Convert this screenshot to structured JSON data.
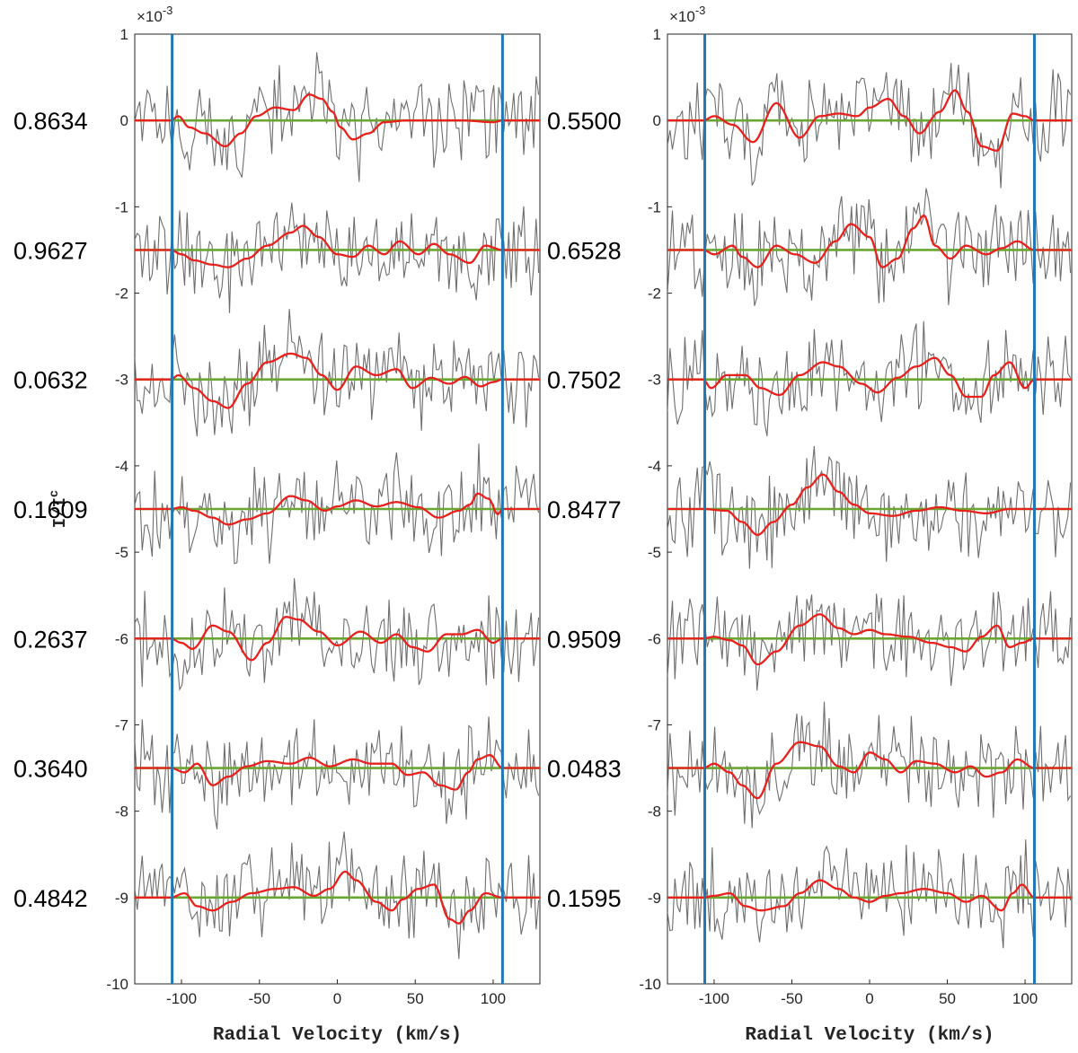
{
  "chart_data": [
    {
      "type": "line",
      "xlabel": "Radial Velocity (km/s)",
      "ylabel": "I/I_c",
      "ylabel_text": "I/I",
      "ylabel_sub": "c",
      "exponent_label": "×10",
      "exponent_power": "-3",
      "xlim": [
        -130,
        130
      ],
      "ylim": [
        -10,
        1
      ],
      "xticks": [
        -100,
        -50,
        0,
        50,
        100
      ],
      "yticks": [
        1,
        0,
        -1,
        -2,
        -3,
        -4,
        -5,
        -6,
        -7,
        -8,
        -9,
        -10
      ],
      "vertical_lines_kms": [
        -106,
        106
      ],
      "offset_step": -1.5,
      "phases": [
        "0.8634",
        "0.9627",
        "0.0632",
        "0.1609",
        "0.2637",
        "0.3640",
        "0.4842"
      ],
      "series": [
        {
          "phase": "0.8634",
          "offset": 0.0,
          "model_x": [
            -130,
            -107,
            -102,
            -95,
            -85,
            -72,
            -62,
            -52,
            -40,
            -28,
            -18,
            -10,
            -3,
            2,
            10,
            20,
            30,
            45,
            60,
            80,
            100,
            106,
            130
          ],
          "model_y": [
            0,
            0,
            0.05,
            -0.08,
            -0.15,
            -0.3,
            -0.15,
            0.05,
            0.15,
            0.12,
            0.3,
            0.25,
            0.1,
            -0.08,
            -0.22,
            -0.15,
            -0.02,
            0,
            0,
            0,
            -0.02,
            0,
            0
          ]
        },
        {
          "phase": "0.9627",
          "offset": -1.5,
          "model_x": [
            -130,
            -107,
            -100,
            -92,
            -80,
            -70,
            -58,
            -45,
            -30,
            -22,
            -12,
            0,
            10,
            20,
            30,
            40,
            52,
            62,
            72,
            85,
            95,
            106,
            130
          ],
          "model_y": [
            0,
            0,
            -0.05,
            -0.12,
            -0.17,
            -0.2,
            -0.1,
            0.05,
            0.2,
            0.28,
            0.15,
            -0.05,
            -0.08,
            0.05,
            -0.05,
            0.1,
            -0.05,
            0.07,
            -0.05,
            -0.15,
            0.05,
            0,
            0
          ]
        },
        {
          "phase": "0.0632",
          "offset": -3.0,
          "model_x": [
            -130,
            -107,
            -102,
            -92,
            -80,
            -70,
            -58,
            -45,
            -30,
            -20,
            -10,
            0,
            12,
            25,
            38,
            48,
            60,
            72,
            82,
            92,
            100,
            106,
            130
          ],
          "model_y": [
            0,
            0,
            0.05,
            -0.1,
            -0.25,
            -0.33,
            -0.05,
            0.2,
            0.3,
            0.25,
            0.05,
            -0.12,
            0.15,
            0.05,
            0.12,
            -0.1,
            0.02,
            -0.05,
            0.03,
            -0.08,
            -0.03,
            0,
            0
          ]
        },
        {
          "phase": "0.1609",
          "offset": -4.5,
          "model_x": [
            -130,
            -107,
            -100,
            -92,
            -80,
            -70,
            -58,
            -45,
            -30,
            -20,
            -8,
            0,
            12,
            25,
            38,
            52,
            65,
            78,
            85,
            90,
            97,
            103,
            106,
            130
          ],
          "model_y": [
            0,
            0,
            0.02,
            -0.02,
            -0.1,
            -0.18,
            -0.12,
            -0.05,
            0.15,
            0.1,
            -0.02,
            0.03,
            0.1,
            0.03,
            0.08,
            0.02,
            -0.1,
            -0.02,
            0.05,
            0.18,
            0.12,
            -0.06,
            0,
            0
          ]
        },
        {
          "phase": "0.2637",
          "offset": -6.0,
          "model_x": [
            -130,
            -107,
            -100,
            -93,
            -80,
            -70,
            -55,
            -45,
            -33,
            -25,
            -12,
            0,
            15,
            28,
            38,
            48,
            58,
            70,
            80,
            90,
            100,
            106,
            130
          ],
          "model_y": [
            0,
            0,
            -0.05,
            -0.12,
            0.15,
            0.08,
            -0.25,
            -0.05,
            0.25,
            0.22,
            0.08,
            -0.08,
            0.08,
            -0.05,
            0.05,
            -0.1,
            -0.15,
            0.05,
            0.05,
            0.1,
            -0.05,
            0,
            0
          ]
        },
        {
          "phase": "0.3640",
          "offset": -7.5,
          "model_x": [
            -130,
            -107,
            -98,
            -90,
            -80,
            -70,
            -58,
            -45,
            -30,
            -18,
            -5,
            10,
            22,
            35,
            45,
            55,
            66,
            76,
            84,
            90,
            98,
            106,
            130
          ],
          "model_y": [
            0,
            0,
            -0.05,
            0.05,
            -0.2,
            -0.1,
            0.02,
            0.08,
            0.05,
            0.12,
            0.02,
            0.1,
            0.05,
            0.05,
            -0.08,
            -0.05,
            -0.2,
            -0.25,
            -0.05,
            0.1,
            0.15,
            0,
            0
          ]
        },
        {
          "phase": "0.4842",
          "offset": -9.0,
          "model_x": [
            -130,
            -107,
            -98,
            -90,
            -80,
            -68,
            -55,
            -40,
            -28,
            -15,
            -5,
            5,
            12,
            25,
            35,
            42,
            52,
            62,
            72,
            78,
            85,
            95,
            106,
            130
          ],
          "model_y": [
            0,
            0,
            0.05,
            -0.1,
            -0.15,
            -0.05,
            0.05,
            0.1,
            0.12,
            0.02,
            0.1,
            0.3,
            0.2,
            -0.05,
            -0.15,
            -0.02,
            0.1,
            0.15,
            -0.25,
            -0.3,
            -0.15,
            0.05,
            0,
            0
          ]
        }
      ]
    },
    {
      "type": "line",
      "xlabel": "Radial Velocity (km/s)",
      "exponent_label": "×10",
      "exponent_power": "-3",
      "xlim": [
        -130,
        130
      ],
      "ylim": [
        -10,
        1
      ],
      "xticks": [
        -100,
        -50,
        0,
        50,
        100
      ],
      "yticks": [
        1,
        0,
        -1,
        -2,
        -3,
        -4,
        -5,
        -6,
        -7,
        -8,
        -9,
        -10
      ],
      "vertical_lines_kms": [
        -106,
        106
      ],
      "offset_step": -1.5,
      "phases": [
        "0.5500",
        "0.6528",
        "0.7502",
        "0.8477",
        "0.9509",
        "0.0483",
        "0.1595"
      ],
      "series": [
        {
          "phase": "0.5500",
          "offset": 0.0,
          "model_x": [
            -130,
            -107,
            -100,
            -88,
            -75,
            -60,
            -45,
            -32,
            -20,
            -8,
            0,
            12,
            22,
            32,
            45,
            55,
            63,
            72,
            82,
            92,
            100,
            106,
            130
          ],
          "model_y": [
            0,
            0,
            0.05,
            -0.05,
            -0.25,
            0.2,
            -0.2,
            0.05,
            0.08,
            0.05,
            0.15,
            0.25,
            0.05,
            -0.15,
            0.1,
            0.35,
            0.1,
            -0.3,
            -0.35,
            0.08,
            0.05,
            0,
            0
          ]
        },
        {
          "phase": "0.6528",
          "offset": -1.5,
          "model_x": [
            -130,
            -107,
            -100,
            -88,
            -82,
            -72,
            -60,
            -48,
            -35,
            -22,
            -12,
            0,
            8,
            18,
            28,
            35,
            42,
            52,
            62,
            75,
            85,
            95,
            106,
            130
          ],
          "model_y": [
            0,
            0,
            -0.05,
            0.05,
            -0.08,
            -0.2,
            0.05,
            -0.05,
            -0.15,
            0.1,
            0.3,
            0.15,
            -0.2,
            -0.1,
            0.25,
            0.4,
            0.05,
            -0.1,
            0.05,
            -0.05,
            0.02,
            0.1,
            0,
            0
          ]
        },
        {
          "phase": "0.7502",
          "offset": -3.0,
          "model_x": [
            -130,
            -107,
            -102,
            -92,
            -80,
            -70,
            -58,
            -45,
            -30,
            -20,
            -5,
            5,
            18,
            30,
            42,
            52,
            62,
            72,
            80,
            90,
            100,
            106,
            130
          ],
          "model_y": [
            0,
            0,
            -0.1,
            0.05,
            0.05,
            -0.1,
            -0.18,
            0.05,
            0.2,
            0.15,
            -0.05,
            -0.15,
            0.02,
            0.15,
            0.25,
            0.05,
            -0.2,
            -0.2,
            0.05,
            0.2,
            -0.1,
            0,
            0
          ]
        },
        {
          "phase": "0.8477",
          "offset": -4.5,
          "model_x": [
            -130,
            -107,
            -92,
            -82,
            -72,
            -62,
            -50,
            -40,
            -30,
            -20,
            -10,
            0,
            15,
            30,
            45,
            60,
            75,
            90,
            106,
            130
          ],
          "model_y": [
            0,
            0,
            -0.02,
            -0.15,
            -0.3,
            -0.15,
            0.05,
            0.25,
            0.4,
            0.2,
            0.05,
            -0.05,
            -0.08,
            -0.02,
            0.02,
            -0.02,
            -0.05,
            0,
            0,
            0
          ]
        },
        {
          "phase": "0.9509",
          "offset": -6.0,
          "model_x": [
            -130,
            -107,
            -100,
            -90,
            -82,
            -72,
            -60,
            -45,
            -32,
            -20,
            -10,
            0,
            10,
            25,
            40,
            52,
            62,
            72,
            82,
            90,
            98,
            106,
            130
          ],
          "model_y": [
            0,
            0,
            0.02,
            -0.02,
            -0.08,
            -0.3,
            -0.15,
            0.15,
            0.28,
            0.12,
            0.05,
            0.1,
            0.05,
            0.02,
            -0.05,
            -0.1,
            -0.15,
            0.02,
            0.15,
            -0.1,
            -0.05,
            0,
            0
          ]
        },
        {
          "phase": "0.0483",
          "offset": -7.5,
          "model_x": [
            -130,
            -107,
            -100,
            -90,
            -82,
            -72,
            -60,
            -45,
            -32,
            -20,
            -10,
            0,
            10,
            20,
            30,
            42,
            55,
            65,
            75,
            85,
            95,
            106,
            130
          ],
          "model_y": [
            0,
            0,
            0.05,
            -0.05,
            -0.2,
            -0.35,
            0.05,
            0.3,
            0.25,
            0.02,
            -0.05,
            0.18,
            0.1,
            -0.05,
            0.08,
            0.05,
            -0.05,
            0.02,
            -0.1,
            -0.05,
            0.1,
            0,
            0
          ]
        },
        {
          "phase": "0.1595",
          "offset": -9.0,
          "model_x": [
            -130,
            -107,
            -100,
            -90,
            -80,
            -70,
            -55,
            -45,
            -32,
            -20,
            -10,
            0,
            10,
            20,
            35,
            50,
            62,
            72,
            85,
            92,
            98,
            106,
            130
          ],
          "model_y": [
            0,
            0,
            0.02,
            0.05,
            -0.1,
            -0.15,
            -0.1,
            0.05,
            0.2,
            0.1,
            0,
            -0.05,
            0.02,
            0.05,
            0.1,
            0.05,
            -0.05,
            0.02,
            -0.15,
            0.05,
            0.15,
            0,
            0
          ]
        }
      ]
    }
  ]
}
